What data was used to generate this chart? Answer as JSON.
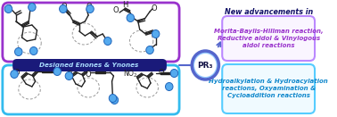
{
  "top_box_color": "#9933cc",
  "bottom_box_color": "#33bbee",
  "label_box_color": "#1a1a7a",
  "label_text": "Designed Enones & Ynones",
  "label_text_color": "#aaddff",
  "pr3_outer_color": "#99ccff",
  "pr3_inner_color": "#ffffff",
  "pr3_edge_color": "#5566cc",
  "pr3_text": "PR₃",
  "right_top_box_edge": "#bb88ff",
  "right_bottom_box_edge": "#55ccff",
  "new_adv_text": "New advancements in",
  "new_adv_color": "#111166",
  "top_reaction_text": "Morita-Baylis-Hillman reaction,\nReductive aldol & Vinylogous\naldol reactions",
  "top_reaction_color": "#9933cc",
  "bottom_reaction_text": "Hydroalkylation & Hydroacylation\nreactions, Oxyamination &\nCycloaddition reactions",
  "bottom_reaction_color": "#1188cc",
  "bg_color": "#ffffff",
  "blue_dot_color": "#55aaee",
  "blue_dot_edge": "#2266bb",
  "bond_color": "#222222",
  "dashed_color": "#999999"
}
